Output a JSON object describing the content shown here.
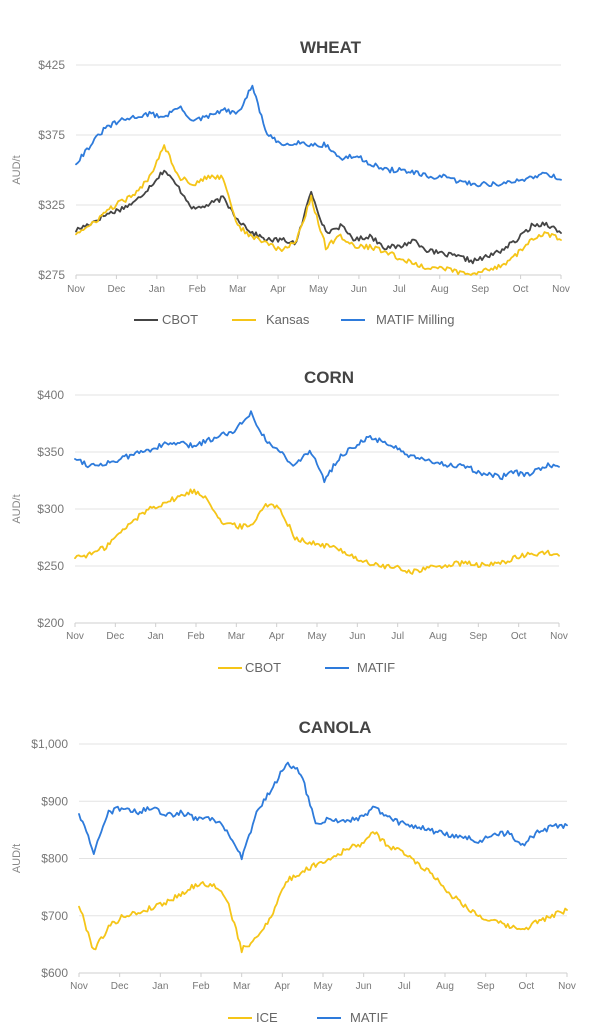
{
  "chart_data": [
    {
      "type": "line",
      "title": "WHEAT",
      "ylabel": "AUD/t",
      "ylim": [
        275,
        425
      ],
      "yticks": [
        275,
        325,
        375,
        425
      ],
      "ytick_labels": [
        "$275",
        "$325",
        "$375",
        "$425"
      ],
      "x_labels": [
        "Nov",
        "Dec",
        "Jan",
        "Feb",
        "Mar",
        "Apr",
        "May",
        "Jun",
        "Jul",
        "Aug",
        "Sep",
        "Oct",
        "Nov"
      ],
      "grid": true,
      "legend_position": "bottom",
      "series": [
        {
          "name": "CBOT",
          "color": "#444444",
          "values": [
            307,
            312,
            318,
            322,
            327,
            338,
            350,
            337,
            322,
            325,
            330,
            315,
            305,
            300,
            300,
            298,
            335,
            305,
            310,
            300,
            303,
            295,
            295,
            300,
            292,
            290,
            288,
            285,
            288,
            293,
            300,
            310,
            312,
            305
          ]
        },
        {
          "name": "Kansas",
          "color": "#F5C518",
          "values": [
            305,
            310,
            320,
            327,
            332,
            345,
            368,
            345,
            340,
            345,
            345,
            310,
            302,
            298,
            292,
            300,
            330,
            295,
            303,
            295,
            295,
            292,
            287,
            283,
            280,
            280,
            277,
            275,
            279,
            282,
            290,
            300,
            305,
            300
          ]
        },
        {
          "name": "MATIF Milling",
          "color": "#2E7BDB",
          "values": [
            355,
            368,
            380,
            385,
            388,
            390,
            388,
            395,
            385,
            388,
            393,
            390,
            410,
            375,
            368,
            370,
            368,
            368,
            358,
            360,
            355,
            350,
            350,
            348,
            345,
            345,
            342,
            340,
            340,
            340,
            342,
            345,
            348,
            343
          ]
        }
      ]
    },
    {
      "type": "line",
      "title": "CORN",
      "ylabel": "AUD/t",
      "ylim": [
        200,
        400
      ],
      "yticks": [
        200,
        250,
        300,
        350,
        400
      ],
      "ytick_labels": [
        "$200",
        "$250",
        "$300",
        "$350",
        "$400"
      ],
      "x_labels": [
        "Nov",
        "Dec",
        "Jan",
        "Feb",
        "Mar",
        "Apr",
        "May",
        "Jun",
        "Jul",
        "Aug",
        "Sep",
        "Oct",
        "Nov"
      ],
      "grid": true,
      "legend_position": "bottom",
      "series": [
        {
          "name": "CBOT",
          "color": "#F5C518",
          "values": [
            258,
            260,
            266,
            278,
            290,
            300,
            305,
            310,
            316,
            310,
            288,
            285,
            285,
            305,
            300,
            275,
            270,
            268,
            265,
            258,
            252,
            250,
            248,
            245,
            248,
            250,
            252,
            252,
            250,
            253,
            257,
            260,
            262,
            259
          ]
        },
        {
          "name": "MATIF",
          "color": "#2E7BDB",
          "values": [
            345,
            338,
            340,
            343,
            348,
            352,
            356,
            358,
            355,
            360,
            365,
            370,
            385,
            360,
            350,
            338,
            352,
            325,
            345,
            355,
            362,
            360,
            352,
            345,
            342,
            340,
            338,
            335,
            330,
            328,
            332,
            330,
            338,
            337
          ]
        }
      ]
    },
    {
      "type": "line",
      "title": "CANOLA",
      "ylabel": "AUD/t",
      "ylim": [
        600,
        1000
      ],
      "yticks": [
        600,
        700,
        800,
        900,
        1000
      ],
      "ytick_labels": [
        "$600",
        "$700",
        "$800",
        "$900",
        "$1,000"
      ],
      "x_labels": [
        "Nov",
        "Dec",
        "Jan",
        "Feb",
        "Mar",
        "Apr",
        "May",
        "Jun",
        "Jul",
        "Aug",
        "Sep",
        "Oct",
        "Nov"
      ],
      "grid": true,
      "legend_position": "bottom",
      "series": [
        {
          "name": "ICE",
          "color": "#F5C518",
          "values": [
            718,
            640,
            680,
            700,
            705,
            715,
            725,
            740,
            755,
            755,
            730,
            640,
            660,
            700,
            760,
            775,
            790,
            800,
            815,
            825,
            845,
            820,
            810,
            790,
            770,
            740,
            720,
            700,
            690,
            682,
            675,
            690,
            700,
            710
          ]
        },
        {
          "name": "MATIF",
          "color": "#2E7BDB",
          "values": [
            880,
            810,
            880,
            890,
            880,
            890,
            875,
            880,
            868,
            870,
            850,
            800,
            880,
            920,
            965,
            950,
            860,
            870,
            865,
            870,
            890,
            870,
            860,
            855,
            848,
            840,
            838,
            830,
            840,
            845,
            825,
            845,
            855,
            858
          ]
        }
      ]
    }
  ]
}
